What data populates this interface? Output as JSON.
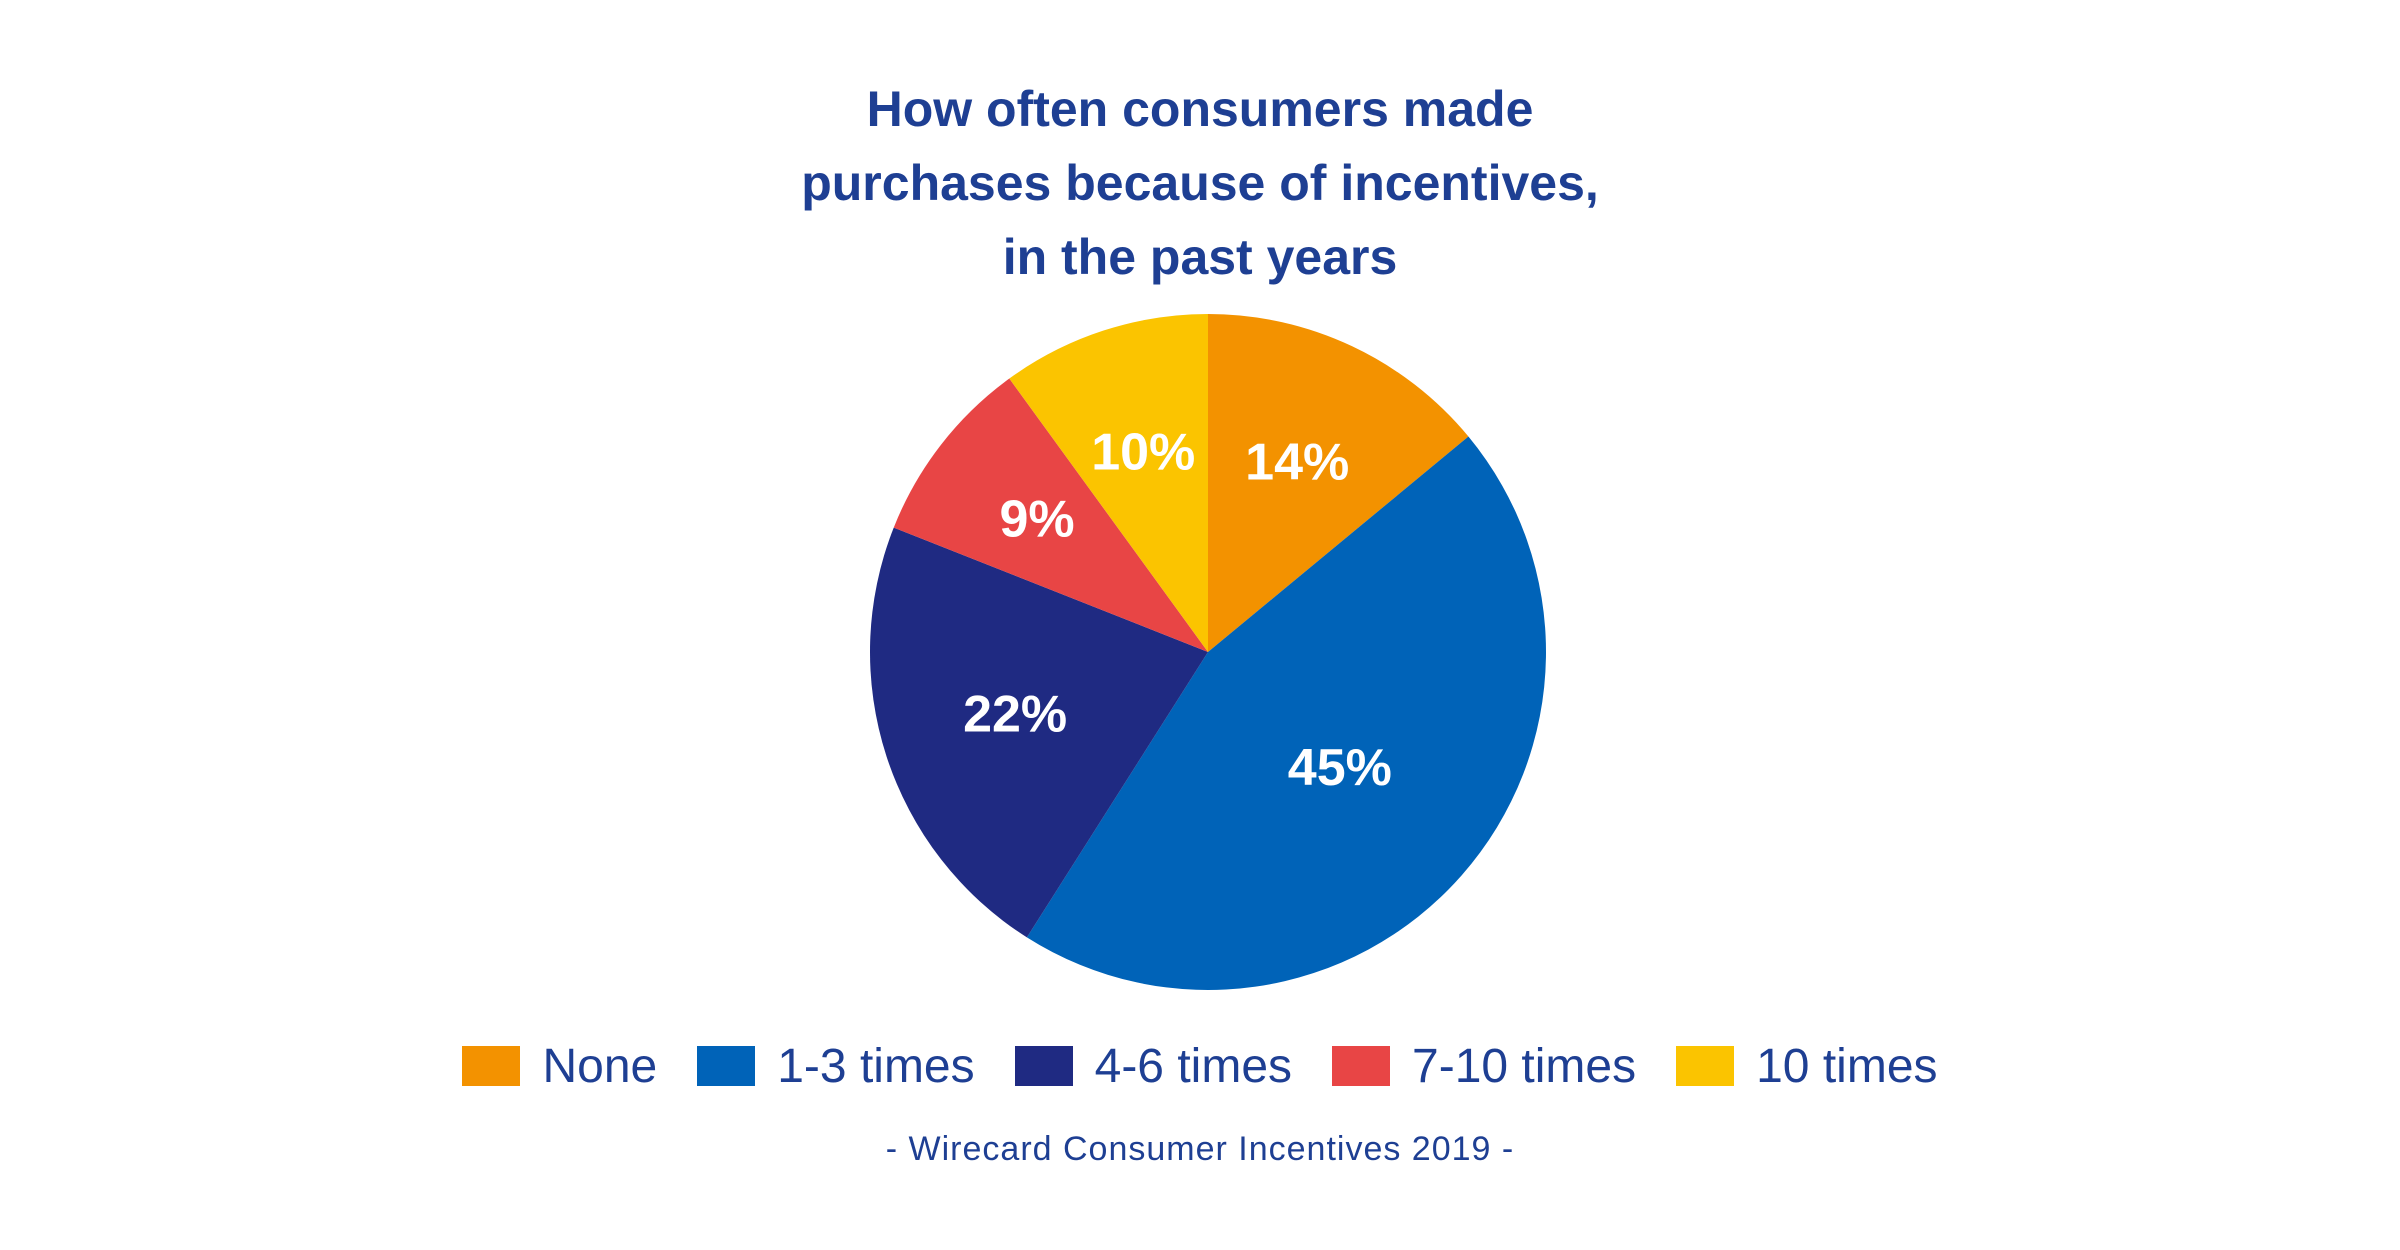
{
  "chart_data": {
    "type": "pie",
    "title_lines": [
      "How often consumers made",
      "purchases because of incentives,",
      "in the past years"
    ],
    "slices": [
      {
        "name": "None",
        "value": 14,
        "label": "14%",
        "color": "#f39200"
      },
      {
        "name": "1-3 times",
        "value": 45,
        "label": "45%",
        "color": "#0063b8"
      },
      {
        "name": "4-6 times",
        "value": 22,
        "label": "22%",
        "color": "#1f2a82"
      },
      {
        "name": "7-10 times",
        "value": 9,
        "label": "9%",
        "color": "#e84545"
      },
      {
        "name": "10 times",
        "value": 10,
        "label": "10%",
        "color": "#fbc400"
      }
    ],
    "legend_position": "bottom",
    "start": "12 o'clock, clockwise"
  },
  "source": "- Wirecard Consumer Incentives 2019 -"
}
